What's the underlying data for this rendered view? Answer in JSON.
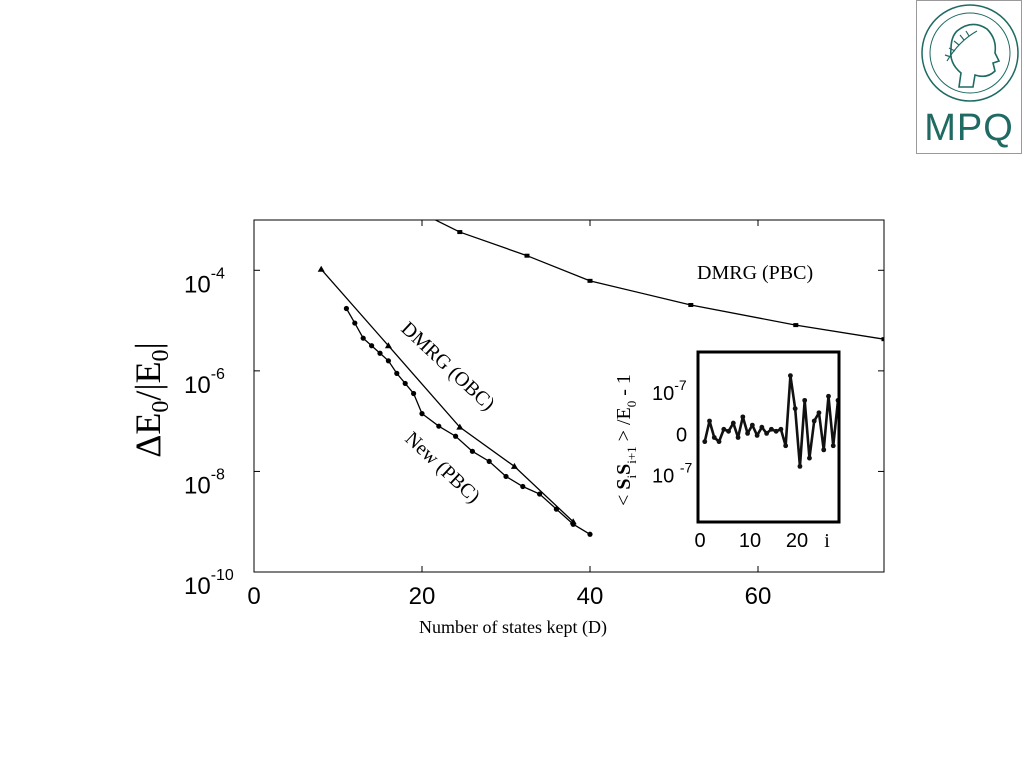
{
  "logo": {
    "text": "MPQ",
    "color": "#1f6a63"
  },
  "chart_data": [
    {
      "type": "line",
      "xlabel": "Number of states kept (D)",
      "ylabel": "ΔE0/|E0|",
      "xlim": [
        0,
        75
      ],
      "ylim_exponent": [
        -10,
        -3
      ],
      "y_log_scale": true,
      "x_ticks": [
        0,
        20,
        40,
        60
      ],
      "y_tick_exponents": [
        -4,
        -6,
        -8,
        -10
      ],
      "y_tick_base": "10",
      "grid": false,
      "series": [
        {
          "name": "DMRG (PBC)",
          "x": [
            21,
            24.5,
            32.5,
            40,
            52,
            64.5,
            75
          ],
          "y_exponent": [
            -2.95,
            -3.24,
            -3.71,
            -4.21,
            -4.69,
            -5.09,
            -5.37
          ]
        },
        {
          "name": "DMRG (OBC)",
          "x": [
            8,
            16,
            24.5,
            31,
            38
          ],
          "y_exponent": [
            -3.98,
            -5.5,
            -7.12,
            -7.9,
            -9.0
          ]
        },
        {
          "name": "New (PBC)",
          "x": [
            11,
            12,
            13,
            14,
            15,
            16,
            17,
            18,
            19,
            20,
            22,
            24,
            26,
            28,
            30,
            32,
            34,
            36,
            38,
            40
          ],
          "y_exponent": [
            -4.76,
            -5.05,
            -5.35,
            -5.5,
            -5.65,
            -5.8,
            -6.05,
            -6.25,
            -6.45,
            -6.85,
            -7.1,
            -7.3,
            -7.6,
            -7.8,
            -8.1,
            -8.3,
            -8.45,
            -8.75,
            -9.05,
            -9.25
          ]
        }
      ]
    },
    {
      "type": "line",
      "inset": true,
      "xlabel": "i",
      "ylabel": "< S_i S_i+1 > /E0 - 1",
      "x_ticks": [
        0,
        10,
        20
      ],
      "y_tick_labels": [
        {
          "value": 1,
          "base": "10",
          "exp": "-7"
        },
        {
          "value": 0,
          "base": "0",
          "exp": ""
        },
        {
          "value": -1,
          "base": "10 ",
          "exp": "-7"
        }
      ],
      "xlim": [
        0,
        29
      ],
      "ylim": [
        -2.1,
        1.9
      ],
      "series": [
        {
          "x": [
            1,
            2,
            3,
            4,
            5,
            6,
            7,
            8,
            9,
            10,
            11,
            12,
            13,
            14,
            15,
            16,
            17,
            18,
            19,
            20,
            21,
            22,
            23,
            24,
            25,
            26,
            27,
            28,
            29
          ],
          "y": [
            -0.2,
            0.3,
            -0.1,
            -0.2,
            0.1,
            0.05,
            0.25,
            -0.1,
            0.4,
            0.0,
            0.2,
            -0.05,
            0.15,
            0.0,
            0.1,
            0.05,
            0.1,
            -0.3,
            1.4,
            0.6,
            -0.8,
            0.8,
            -0.6,
            0.3,
            0.5,
            -0.4,
            0.9,
            -0.3,
            0.8
          ]
        }
      ]
    }
  ]
}
